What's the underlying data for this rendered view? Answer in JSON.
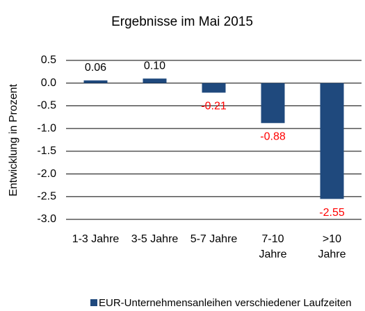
{
  "chart_data": {
    "type": "bar",
    "title": "Ergebnisse im Mai 2015",
    "y_label": "Entwicklung in Prozent",
    "categories": [
      "1-3 Jahre",
      "3-5 Jahre",
      "5-7 Jahre",
      "7-10 Jahre",
      ">10 Jahre"
    ],
    "series": [
      {
        "name": "EUR-Unternehmensanleihen verschiedener Laufzeiten",
        "color": "#1f497d",
        "values": [
          0.06,
          0.1,
          -0.21,
          -0.88,
          -2.55
        ],
        "value_labels": [
          "0.06",
          "0.10",
          "-0.21",
          "-0.88",
          "-2.55"
        ]
      }
    ],
    "negative_label_color": "#ff0000",
    "ylim": [
      -3.0,
      0.5
    ],
    "yticks": [
      0.5,
      {
        "value": 0,
        "label": "0.0"
      },
      -0.5,
      {
        "value": -1,
        "label": "-1.0"
      },
      -1.5,
      {
        "value": -2,
        "label": "-2.0"
      },
      -2.5,
      {
        "value": -3,
        "label": "-3.0"
      }
    ],
    "grid": true,
    "legend": "bottom"
  }
}
